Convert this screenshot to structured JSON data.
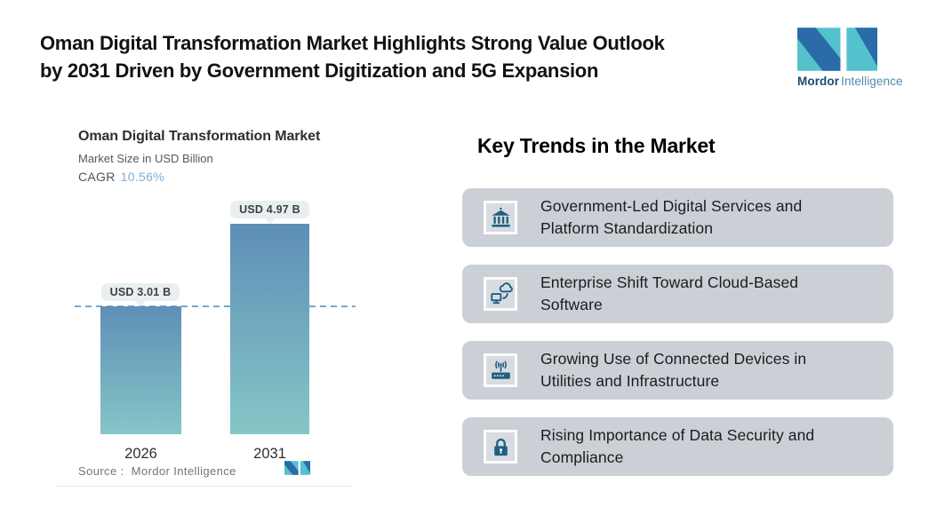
{
  "header": {
    "title_line1": "Oman Digital Transformation Market Highlights Strong Value Outlook",
    "title_line2": "by 2031 Driven by Government Digitization and 5G Expansion"
  },
  "brand": {
    "name_bold": "Mordor",
    "name_light": "Intelligence",
    "teal": "#54c2cc",
    "blue": "#2a6ba8",
    "text_dark_color": "#1b4a70",
    "text_light_color": "#5389ae"
  },
  "chart_data": {
    "type": "bar",
    "title": "Oman Digital Transformation Market",
    "subtitle": "Market Size in USD Billion",
    "cagr_label": "CAGR",
    "cagr_value": "10.56%",
    "categories": [
      "2026",
      "2031"
    ],
    "values": [
      3.01,
      4.97
    ],
    "value_labels": [
      "USD 3.01 B",
      "USD 4.97 B"
    ],
    "unit": "USD Billion",
    "ylim": [
      0,
      4.97
    ],
    "reference_line": 3.01,
    "grid": false,
    "legend": false,
    "bar_gradient_top": "#5e8fb7",
    "bar_gradient_bottom": "#85c6c7",
    "dashed_line_color": "#7aa6c9",
    "cagr_value_color": "#7fb0d6",
    "source_label": "Source :",
    "source_value": "Mordor Intelligence"
  },
  "trends": {
    "heading": "Key Trends in the Market",
    "card_bg": "#cbcfd6",
    "icon_color": "#1e5f82",
    "items": [
      {
        "icon": "bank-icon",
        "text": "Government-Led Digital Services and Platform Standardization"
      },
      {
        "icon": "cloud-sync-icon",
        "text": "Enterprise Shift Toward Cloud-Based Software"
      },
      {
        "icon": "router-wifi-icon",
        "text": "Growing Use of Connected Devices in Utilities and Infrastructure"
      },
      {
        "icon": "lock-icon",
        "text": "Rising Importance of Data Security and Compliance"
      }
    ]
  }
}
